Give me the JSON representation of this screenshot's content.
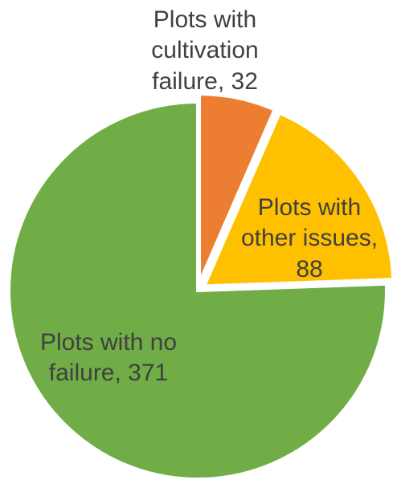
{
  "chart_data": {
    "type": "pie",
    "title": "",
    "slices": [
      {
        "label": "Plots with cultivation failure, 32",
        "name": "Plots with cultivation failure",
        "value": 32,
        "color": "#ED7D31",
        "label_color": "#404040",
        "exploded": true
      },
      {
        "label": "Plots with other issues, 88",
        "name": "Plots with other issues",
        "value": 88,
        "color": "#FFC000",
        "label_color": "#404040",
        "exploded": true
      },
      {
        "label": "Plots with no failure, 371",
        "name": "Plots with no failure",
        "value": 371,
        "color": "#70AD47",
        "label_color": "#404040",
        "exploded": false
      }
    ],
    "legend": "none",
    "start_angle": "12 o'clock, clockwise"
  },
  "labels": {
    "cultivation_failure": "Plots with\ncultivation\nfailure, 32",
    "other_issues": "Plots with\nother issues,\n88",
    "no_failure": "Plots with no\nfailure, 371"
  }
}
